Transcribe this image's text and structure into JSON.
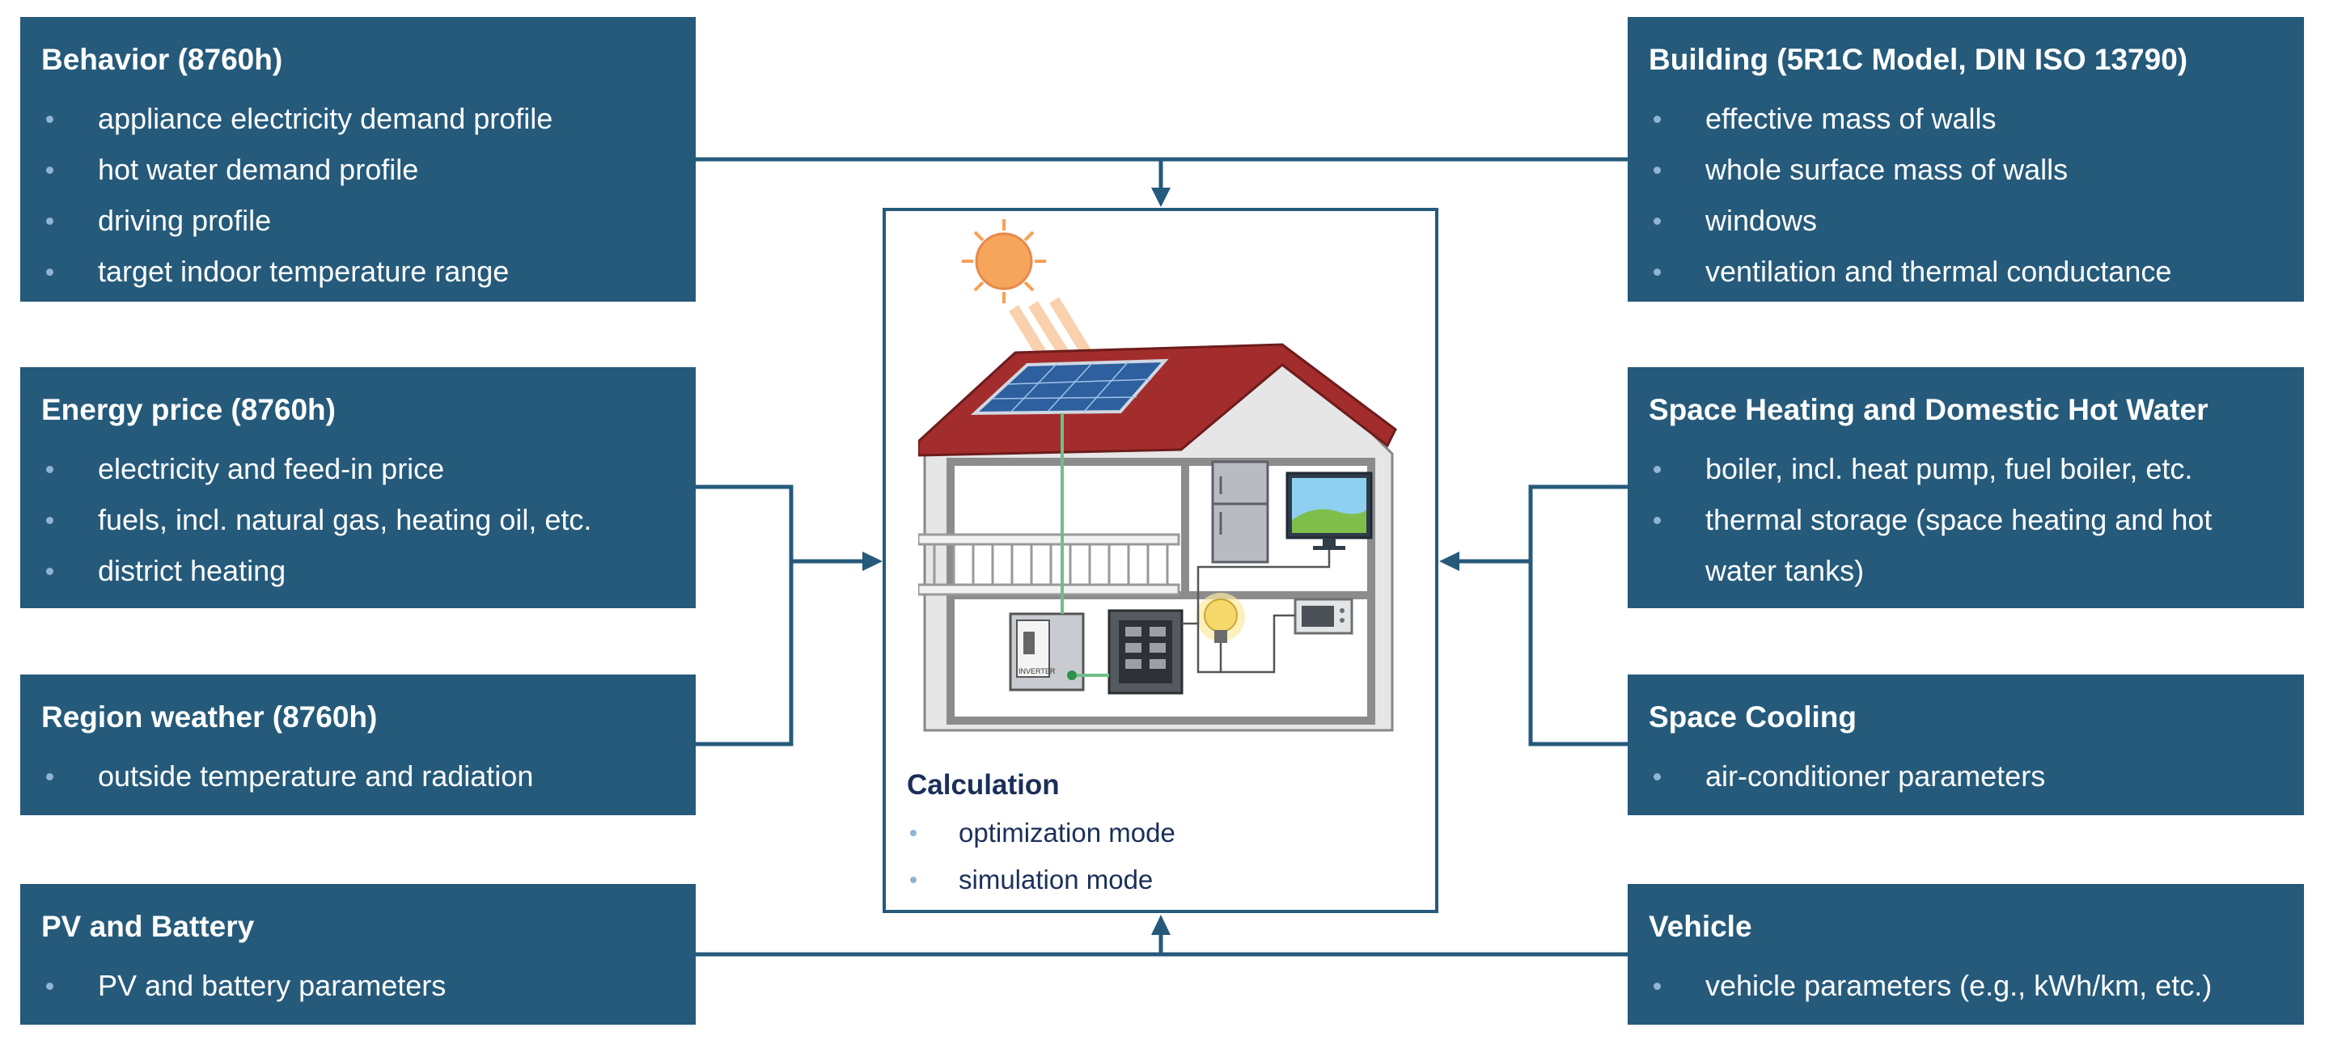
{
  "colors": {
    "box_fill": "#255a7b",
    "box_text": "#ffffff",
    "bullet": "#8fb4d6",
    "connector": "#255a7b",
    "calc_text": "#1a2f5a"
  },
  "behavior": {
    "title": "Behavior (8760h)",
    "items": [
      "appliance electricity demand profile",
      "hot water demand profile",
      "driving profile",
      "target indoor temperature range"
    ]
  },
  "energy_price": {
    "title": "Energy price (8760h)",
    "items": [
      "electricity and feed-in price",
      "fuels, incl. natural gas, heating oil, etc.",
      "district heating"
    ]
  },
  "region_weather": {
    "title": "Region weather (8760h)",
    "items": [
      "outside temperature and radiation"
    ]
  },
  "pv_battery": {
    "title": "PV and Battery",
    "items": [
      "PV and battery parameters"
    ]
  },
  "building": {
    "title": "Building (5R1C Model, DIN ISO 13790)",
    "items": [
      "effective mass of walls",
      "whole surface mass of walls",
      "windows",
      "ventilation and thermal conductance"
    ]
  },
  "heating": {
    "title": "Space Heating and Domestic Hot Water",
    "items": [
      "boiler, incl. heat pump, fuel boiler, etc.",
      "thermal storage (space heating and hot",
      "water tanks)"
    ]
  },
  "cooling": {
    "title": "Space Cooling",
    "items": [
      "air-conditioner parameters"
    ]
  },
  "vehicle": {
    "title": "Vehicle",
    "items": [
      "vehicle parameters (e.g., kWh/km, etc.)"
    ]
  },
  "calculation": {
    "title": "Calculation",
    "items": [
      "optimization mode",
      "simulation mode"
    ]
  },
  "house_illustration": {
    "inverter_label": "INVERTER",
    "icons": [
      "sun-icon",
      "solar-panel-icon",
      "fridge-icon",
      "tv-icon",
      "light-bulb-icon",
      "microwave-icon",
      "inverter-icon",
      "electrical-panel-icon"
    ]
  }
}
